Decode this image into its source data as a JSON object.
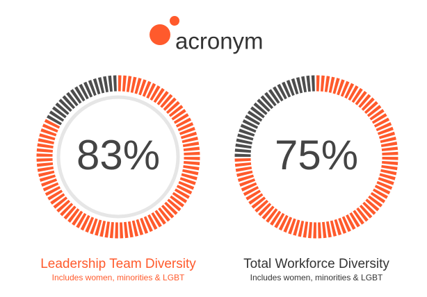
{
  "header": {
    "logo": "acronym"
  },
  "chart_data": [
    {
      "type": "donut",
      "title": "Leadership Team Diversity",
      "subtitle": "Includes women, minorities & LGBT",
      "values": [
        83
      ],
      "value_labels": [
        "83%"
      ],
      "color": "#ff5a2c",
      "remainder_color": "#4d4d4d",
      "title_color": "#ff5a2c",
      "inner_ring": true
    },
    {
      "type": "donut",
      "title": "Total Workforce Diversity",
      "subtitle": "Includes women, minorities & LGBT",
      "values": [
        75
      ],
      "value_labels": [
        "75%"
      ],
      "color": "#ff5a2c",
      "remainder_color": "#4d4d4d",
      "title_color": "#333333",
      "inner_ring": false
    }
  ]
}
